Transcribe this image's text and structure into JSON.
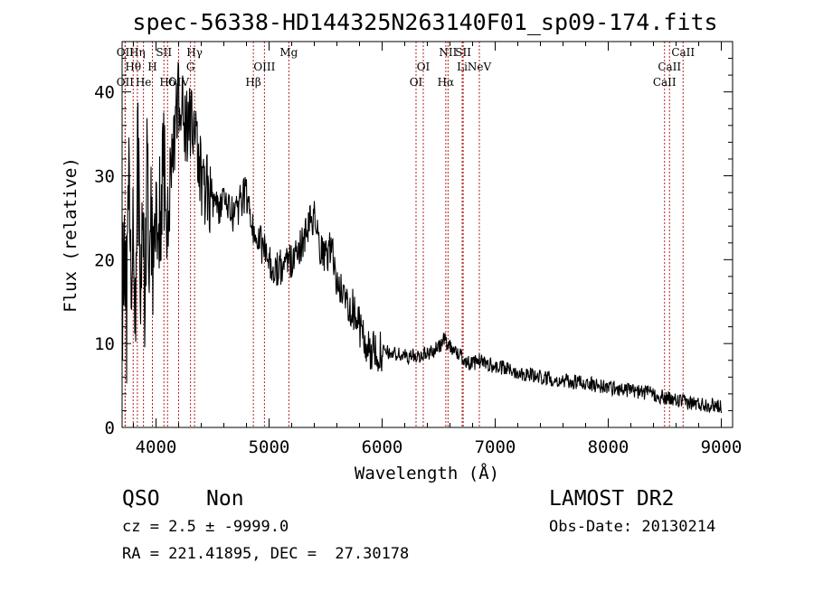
{
  "chart_data": {
    "type": "line",
    "title": "spec-56338-HD144325N263140F01_sp09-174.fits",
    "xlabel": "Wavelength (Å)",
    "ylabel": "Flux (relative)",
    "xlim": [
      3700,
      9100
    ],
    "ylim": [
      0,
      46
    ],
    "xticks": [
      4000,
      5000,
      6000,
      7000,
      8000,
      9000
    ],
    "yticks": [
      0,
      10,
      20,
      30,
      40
    ],
    "grid": false,
    "series": [
      {
        "x": [
          3700,
          3720,
          3740,
          3760,
          3780,
          3800,
          3820,
          3840,
          3860,
          3880,
          3900,
          3920,
          3940,
          3960,
          3980,
          4000,
          4030,
          4060,
          4100,
          4130,
          4160,
          4200,
          4230,
          4260,
          4300,
          4340,
          4380,
          4420,
          4460,
          4500,
          4550,
          4600,
          4650,
          4700,
          4750,
          4800,
          4850,
          4900,
          4950,
          5000,
          5050,
          5100,
          5150,
          5200,
          5250,
          5300,
          5350,
          5400,
          5450,
          5500,
          5550,
          5600,
          5650,
          5700,
          5750,
          5800,
          5850,
          5900,
          5950,
          6000,
          6100,
          6200,
          6300,
          6400,
          6500,
          6550,
          6600,
          6650,
          6700,
          6750,
          6800,
          6850,
          6900,
          7000,
          7100,
          7200,
          7300,
          7400,
          7500,
          7600,
          7700,
          7800,
          7900,
          8000,
          8100,
          8200,
          8300,
          8400,
          8500,
          8600,
          8700,
          8800,
          8900,
          9000
        ],
        "values": [
          15,
          24,
          12,
          30,
          20,
          25,
          14,
          33,
          18,
          28,
          16,
          31,
          22,
          27,
          19,
          29,
          24,
          32,
          23,
          30,
          35,
          40,
          38,
          36,
          37,
          34,
          32,
          29,
          28,
          27,
          26,
          27,
          26,
          25,
          27,
          28,
          24,
          23,
          21,
          20,
          19,
          19,
          20,
          20,
          21,
          22,
          24,
          25,
          21,
          20,
          22,
          17,
          16,
          15,
          14,
          12,
          10,
          9,
          9,
          9,
          8.8,
          8.5,
          8.5,
          8.8,
          9.5,
          10.5,
          9.8,
          9.0,
          8.5,
          7.8,
          7.5,
          8.0,
          7.8,
          7.2,
          7.0,
          6.6,
          6.3,
          6.0,
          5.8,
          5.5,
          5.4,
          5.3,
          5.0,
          4.8,
          4.6,
          4.4,
          4.2,
          4.0,
          3.5,
          3.2,
          3.0,
          2.8,
          2.7,
          2.6
        ]
      }
    ],
    "line_markers": [
      {
        "label": "OII",
        "x": 3727,
        "row": 0
      },
      {
        "label": "Hη",
        "x": 3835,
        "row": 0
      },
      {
        "label": "SII",
        "x": 4070,
        "row": 0
      },
      {
        "label": "Hγ",
        "x": 4341,
        "row": 0
      },
      {
        "label": "Mg",
        "x": 5175,
        "row": 0
      },
      {
        "label": "NII",
        "x": 6583,
        "row": 0
      },
      {
        "label": "SII",
        "x": 6717,
        "row": 0
      },
      {
        "label": "CaII",
        "x": 8662,
        "row": 0
      },
      {
        "label": "Hθ",
        "x": 3798,
        "row": 1
      },
      {
        "label": "H",
        "x": 3968,
        "row": 1
      },
      {
        "label": "G",
        "x": 4305,
        "row": 1
      },
      {
        "label": "OIII",
        "x": 4959,
        "row": 1
      },
      {
        "label": "OI",
        "x": 6364,
        "row": 1
      },
      {
        "label": "Li",
        "x": 6708,
        "row": 1
      },
      {
        "label": "NeV",
        "x": 6860,
        "row": 1
      },
      {
        "label": "CaII",
        "x": 8542,
        "row": 1
      },
      {
        "label": "OII",
        "x": 3727,
        "row": 2
      },
      {
        "label": "He",
        "x": 3889,
        "row": 2
      },
      {
        "label": "Hδ",
        "x": 4102,
        "row": 2
      },
      {
        "label": "OIV",
        "x": 4200,
        "row": 2
      },
      {
        "label": "Hβ",
        "x": 4861,
        "row": 2
      },
      {
        "label": "OI",
        "x": 6300,
        "row": 2
      },
      {
        "label": "Hα",
        "x": 6563,
        "row": 2
      },
      {
        "label": "CaII",
        "x": 8498,
        "row": 2
      }
    ]
  },
  "info": {
    "object_class": "QSO",
    "subclass": "Non",
    "survey": "LAMOST DR2",
    "redshift": "cz = 2.5 ± -9999.0",
    "obs_date": "Obs-Date: 20130214",
    "coords": "RA = 221.41895, DEC =  27.30178"
  }
}
